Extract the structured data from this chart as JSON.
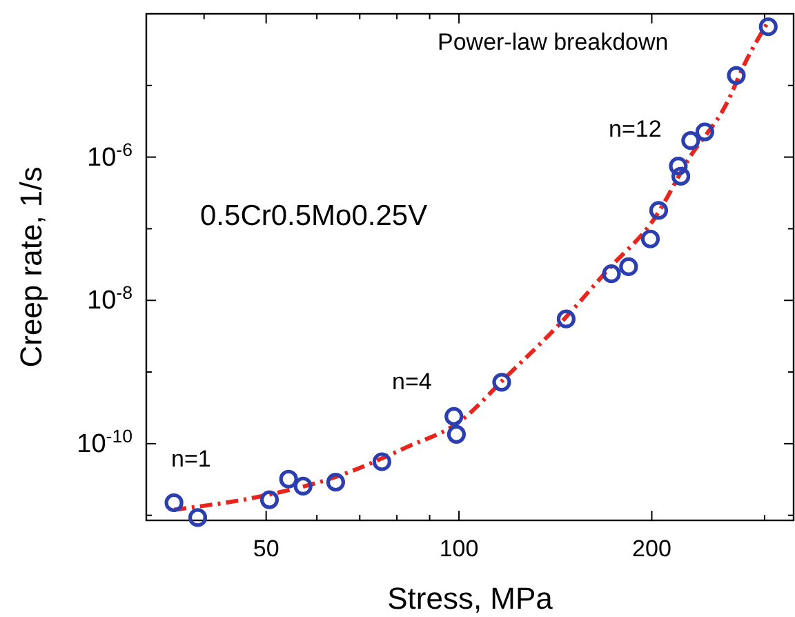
{
  "chart_data": {
    "type": "scatter",
    "xlabel": "Stress, MPa",
    "ylabel": "Creep rate,  1/s",
    "log": "xy",
    "grid": false,
    "xlim": [
      32.5,
      333
    ],
    "ylim": [
      8.5e-12,
      0.0001
    ],
    "xticks": [
      {
        "value": 40,
        "label": null
      },
      50,
      {
        "value": 60,
        "label": null
      },
      {
        "value": 70,
        "label": null
      },
      {
        "value": 80,
        "label": null
      },
      {
        "value": 90,
        "label": null
      },
      100,
      200,
      {
        "value": 300,
        "label": null
      }
    ],
    "yticks": [
      {
        "value": 1e-11,
        "label": null
      },
      {
        "value": 1e-10,
        "label": "10$^{-10}$"
      },
      {
        "value": 1e-09,
        "label": null
      },
      {
        "value": 1e-08,
        "label": "10$^{-8}$"
      },
      {
        "value": 1e-07,
        "label": null
      },
      {
        "value": 1e-06,
        "label": "10$^{-6}$"
      },
      {
        "value": 1e-05,
        "label": null
      }
    ],
    "series": [
      {
        "color": "#2b3fb0",
        "marker": "circle",
        "x": [
          35.9,
          39.1,
          50.6,
          54.2,
          57.1,
          64.2,
          75.8,
          98.2,
          99.1,
          116.6,
          147,
          173,
          184,
          199,
          205,
          220,
          222,
          230,
          242,
          271,
          304
        ],
        "values": [
          1.5e-11,
          9.3e-12,
          1.65e-11,
          3.2e-11,
          2.55e-11,
          2.9e-11,
          5.6e-11,
          2.4e-10,
          1.35e-10,
          7.2e-10,
          5.5e-09,
          2.35e-08,
          2.95e-08,
          7.2e-08,
          1.8e-07,
          7.5e-07,
          5.4e-07,
          1.7e-06,
          2.25e-06,
          1.38e-05,
          6.6e-05
        ]
      },
      {
        "type": "line",
        "color": "#e8251e",
        "line_style": "dashdot",
        "x": [
          35.9,
          50.6,
          64,
          83,
          100,
          119,
          143,
          171,
          202,
          229,
          262,
          280,
          304
        ],
        "values": [
          1.2e-11,
          1.95e-11,
          3.4e-11,
          9e-11,
          2e-10,
          8.9e-10,
          4.5e-09,
          2.7e-08,
          1.4e-07,
          9.8e-07,
          5.7e-06,
          2.1e-05,
          7.8e-05
        ]
      }
    ],
    "annotations": [
      "Power-law breakdown",
      "0.5Cr0.5Mo0.25V",
      "n=1",
      "n=4",
      "n=12"
    ]
  }
}
